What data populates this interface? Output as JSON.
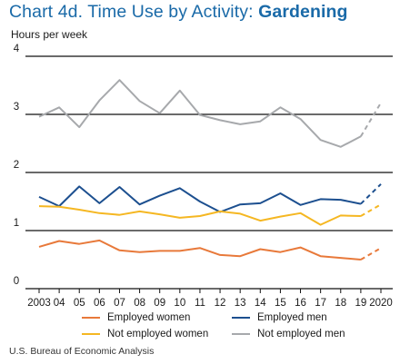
{
  "chart_data": {
    "type": "line",
    "title": "Chart 4d. Time Use by Activity:",
    "subtitle": "Gardening",
    "ylabel": "Hours per week",
    "xlabel": "",
    "ylim": [
      0,
      4
    ],
    "yticks": [
      "0",
      "1",
      "2",
      "3",
      "4"
    ],
    "x": [
      "2003",
      "04",
      "05",
      "06",
      "07",
      "08",
      "09",
      "10",
      "11",
      "12",
      "13",
      "14",
      "15",
      "16",
      "17",
      "18",
      "19",
      "2020"
    ],
    "grid": true,
    "legend_position": "bottom",
    "series": [
      {
        "name": "Employed women",
        "color": "#e8793a",
        "values": [
          0.72,
          0.82,
          0.77,
          0.83,
          0.66,
          0.63,
          0.65,
          0.65,
          0.7,
          0.58,
          0.56,
          0.68,
          0.63,
          0.71,
          0.56,
          0.53,
          0.5,
          0.7
        ]
      },
      {
        "name": "Employed men",
        "color": "#1c4f8f",
        "values": [
          1.58,
          1.42,
          1.76,
          1.47,
          1.75,
          1.45,
          1.6,
          1.73,
          1.5,
          1.32,
          1.45,
          1.47,
          1.64,
          1.44,
          1.54,
          1.53,
          1.46,
          1.8
        ]
      },
      {
        "name": "Not employed women",
        "color": "#f5b722",
        "values": [
          1.42,
          1.41,
          1.36,
          1.3,
          1.27,
          1.33,
          1.28,
          1.22,
          1.25,
          1.33,
          1.29,
          1.17,
          1.24,
          1.3,
          1.1,
          1.26,
          1.25,
          1.45
        ]
      },
      {
        "name": "Not employed men",
        "color": "#a7a9ac",
        "values": [
          2.96,
          3.12,
          2.78,
          3.24,
          3.59,
          3.23,
          3.02,
          3.41,
          2.99,
          2.9,
          2.83,
          2.88,
          3.12,
          2.92,
          2.56,
          2.44,
          2.62,
          3.2
        ]
      }
    ],
    "dashed_last_segment": true
  },
  "source": "U.S. Bureau of Economic Analysis"
}
